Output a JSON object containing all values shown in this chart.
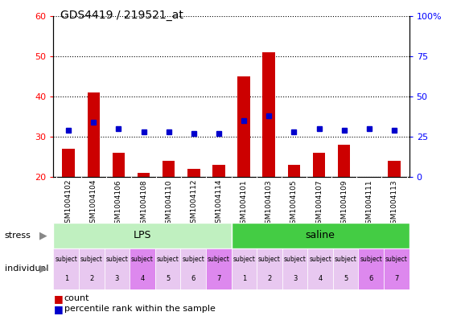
{
  "title": "GDS4419 / 219521_at",
  "samples": [
    "GSM1004102",
    "GSM1004104",
    "GSM1004106",
    "GSM1004108",
    "GSM1004110",
    "GSM1004112",
    "GSM1004114",
    "GSM1004101",
    "GSM1004103",
    "GSM1004105",
    "GSM1004107",
    "GSM1004109",
    "GSM1004111",
    "GSM1004113"
  ],
  "counts": [
    27,
    41,
    26,
    21,
    24,
    22,
    23,
    45,
    51,
    23,
    26,
    28,
    20,
    24
  ],
  "percentile_ranks": [
    29,
    34,
    30,
    28,
    28,
    27,
    27,
    35,
    38,
    28,
    30,
    29,
    30,
    29
  ],
  "individual_labels": [
    "subject\n1",
    "subject\n2",
    "subject\n3",
    "subject\n4",
    "subject\n5",
    "subject\n6",
    "subject\n7",
    "subject\n1",
    "subject\n2",
    "subject\n3",
    "subject\n4",
    "subject\n5",
    "subject\n6",
    "subject\n7"
  ],
  "individual_colors": [
    "#e8c8f0",
    "#e8c8f0",
    "#e8c8f0",
    "#dd88ee",
    "#e8c8f0",
    "#e8c8f0",
    "#dd88ee",
    "#e8c8f0",
    "#e8c8f0",
    "#e8c8f0",
    "#e8c8f0",
    "#e8c8f0",
    "#dd88ee",
    "#dd88ee"
  ],
  "lps_color": "#c0f0c0",
  "saline_color": "#44cc44",
  "bar_color": "#cc0000",
  "dot_color": "#0000cc",
  "ylim_left": [
    20,
    60
  ],
  "ylim_right": [
    0,
    100
  ],
  "yticks_left": [
    20,
    30,
    40,
    50,
    60
  ],
  "yticks_right": [
    0,
    25,
    50,
    75,
    100
  ],
  "xtick_bg": "#c8c8c8",
  "plot_bg": "#ffffff",
  "fig_bg": "#ffffff"
}
